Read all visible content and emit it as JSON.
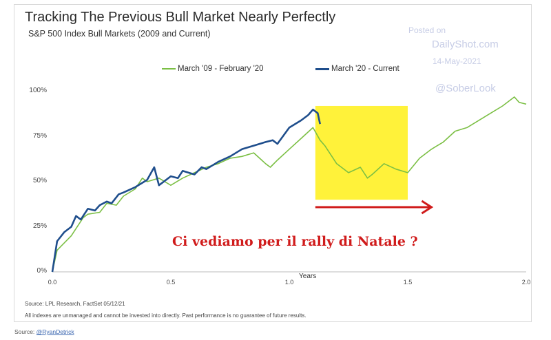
{
  "title": "Tracking The Previous Bull Market Nearly Perfectly",
  "subtitle": "S&P 500 Index Bull Markets (2009 and Current)",
  "watermark": {
    "posted_on": "Posted on",
    "site": "DailyShot.com",
    "date": "14-May-2021",
    "handle": "@SoberLook"
  },
  "annotation": "Ci vediamo per il rally di Natale ?",
  "source_line": "Source: LPL Research, FactSet 05/12/21",
  "disclaimer": "All indexes are unmanaged and cannot be invested into directly. Past performance is no guarantee of future results.",
  "outer_source": {
    "prefix": "Source: ",
    "handle": "@RyanDetrick"
  },
  "colors": {
    "previous": "#7bbf44",
    "current": "#1f4e8c",
    "highlight": "#fff23a",
    "arrow": "#d01b1b"
  },
  "chart_data": {
    "type": "line",
    "title": "Tracking The Previous Bull Market Nearly Perfectly",
    "subtitle": "S&P 500 Index Bull Markets (2009 and Current)",
    "xlabel": "Years",
    "ylabel": "",
    "xlim": [
      0,
      2.0
    ],
    "ylim": [
      0,
      100
    ],
    "x_ticks": [
      "0.0",
      "0.5",
      "1.0",
      "1.5",
      "2.0"
    ],
    "y_ticks": [
      "0%",
      "25%",
      "50%",
      "75%",
      "100%"
    ],
    "grid": false,
    "legend": "top",
    "series": [
      {
        "name": "March '09 - February '20",
        "x": [
          0.0,
          0.02,
          0.05,
          0.08,
          0.1,
          0.13,
          0.15,
          0.2,
          0.23,
          0.27,
          0.3,
          0.35,
          0.38,
          0.4,
          0.45,
          0.5,
          0.55,
          0.6,
          0.65,
          0.7,
          0.75,
          0.8,
          0.85,
          0.9,
          0.92,
          0.95,
          1.0,
          1.05,
          1.1,
          1.13,
          1.15,
          1.2,
          1.25,
          1.3,
          1.33,
          1.35,
          1.4,
          1.45,
          1.5,
          1.55,
          1.6,
          1.65,
          1.7,
          1.75,
          1.8,
          1.85,
          1.9,
          1.95,
          1.97,
          2.0
        ],
        "values": [
          0,
          12,
          16,
          20,
          24,
          30,
          32,
          33,
          38,
          37,
          42,
          46,
          52,
          50,
          52,
          48,
          52,
          55,
          58,
          60,
          63,
          64,
          66,
          60,
          58,
          62,
          68,
          74,
          80,
          73,
          70,
          60,
          55,
          58,
          52,
          54,
          60,
          57,
          55,
          63,
          68,
          72,
          78,
          80,
          84,
          88,
          92,
          97,
          94,
          93
        ]
      },
      {
        "name": "March '20 - Current",
        "x": [
          0.0,
          0.02,
          0.05,
          0.08,
          0.1,
          0.12,
          0.15,
          0.18,
          0.2,
          0.23,
          0.25,
          0.28,
          0.3,
          0.35,
          0.4,
          0.43,
          0.45,
          0.5,
          0.53,
          0.55,
          0.6,
          0.63,
          0.65,
          0.7,
          0.75,
          0.8,
          0.85,
          0.9,
          0.93,
          0.95,
          1.0,
          1.05,
          1.08,
          1.1,
          1.12,
          1.13
        ],
        "values": [
          0,
          17,
          22,
          25,
          31,
          29,
          35,
          34,
          37,
          39,
          38,
          43,
          44,
          47,
          51,
          58,
          48,
          53,
          52,
          56,
          54,
          58,
          57,
          61,
          64,
          68,
          70,
          72,
          73,
          71,
          80,
          84,
          87,
          90,
          88,
          82
        ]
      }
    ],
    "highlight": {
      "x_range": [
        1.11,
        1.5
      ],
      "y_range": [
        40,
        92
      ]
    },
    "annotation": "Ci vediamo per il rally di Natale ?"
  }
}
